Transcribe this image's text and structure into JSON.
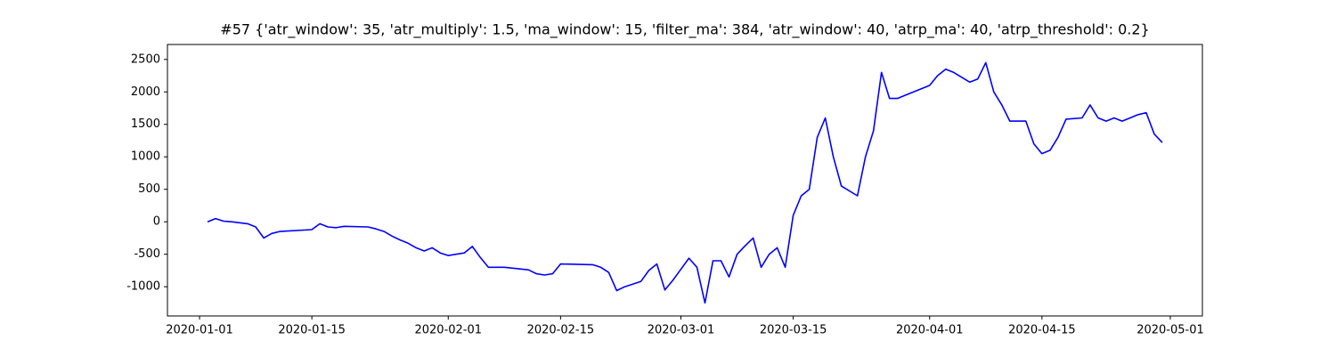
{
  "chart_data": {
    "type": "line",
    "title": "#57 {'atr_window': 35, 'atr_multiply': 1.5, 'ma_window': 15, 'filter_ma': 384, 'atr_window': 40, 'atrp_ma': 40, 'atrp_threshold': 0.2}",
    "x": [
      "2020-01-02",
      "2020-01-03",
      "2020-01-04",
      "2020-01-05",
      "2020-01-07",
      "2020-01-08",
      "2020-01-09",
      "2020-01-10",
      "2020-01-11",
      "2020-01-15",
      "2020-01-16",
      "2020-01-17",
      "2020-01-18",
      "2020-01-19",
      "2020-01-22",
      "2020-01-23",
      "2020-01-24",
      "2020-01-25",
      "2020-01-26",
      "2020-01-27",
      "2020-01-28",
      "2020-01-29",
      "2020-01-30",
      "2020-01-31",
      "2020-02-01",
      "2020-02-03",
      "2020-02-04",
      "2020-02-05",
      "2020-02-06",
      "2020-02-08",
      "2020-02-11",
      "2020-02-12",
      "2020-02-13",
      "2020-02-14",
      "2020-02-15",
      "2020-02-19",
      "2020-02-20",
      "2020-02-21",
      "2020-02-22",
      "2020-02-23",
      "2020-02-25",
      "2020-02-26",
      "2020-02-27",
      "2020-02-28",
      "2020-02-29",
      "2020-03-02",
      "2020-03-03",
      "2020-03-04",
      "2020-03-05",
      "2020-03-06",
      "2020-03-07",
      "2020-03-08",
      "2020-03-09",
      "2020-03-10",
      "2020-03-11",
      "2020-03-12",
      "2020-03-13",
      "2020-03-14",
      "2020-03-15",
      "2020-03-16",
      "2020-03-17",
      "2020-03-18",
      "2020-03-19",
      "2020-03-20",
      "2020-03-21",
      "2020-03-23",
      "2020-03-24",
      "2020-03-25",
      "2020-03-26",
      "2020-03-27",
      "2020-03-28",
      "2020-03-29",
      "2020-03-30",
      "2020-03-31",
      "2020-04-01",
      "2020-04-02",
      "2020-04-03",
      "2020-04-04",
      "2020-04-06",
      "2020-04-07",
      "2020-04-08",
      "2020-04-09",
      "2020-04-10",
      "2020-04-11",
      "2020-04-13",
      "2020-04-14",
      "2020-04-15",
      "2020-04-16",
      "2020-04-17",
      "2020-04-18",
      "2020-04-20",
      "2020-04-21",
      "2020-04-22",
      "2020-04-23",
      "2020-04-24",
      "2020-04-25",
      "2020-04-27",
      "2020-04-28",
      "2020-04-29",
      "2020-04-30"
    ],
    "series": [
      {
        "color": "#0000ff",
        "values": [
          0,
          50,
          10,
          0,
          -30,
          -80,
          -250,
          -180,
          -150,
          -120,
          -30,
          -80,
          -90,
          -70,
          -80,
          -110,
          -150,
          -220,
          -280,
          -330,
          -400,
          -450,
          -400,
          -480,
          -520,
          -480,
          -380,
          -550,
          -700,
          -700,
          -740,
          -800,
          -820,
          -800,
          -650,
          -660,
          -700,
          -780,
          -1060,
          -1000,
          -920,
          -750,
          -650,
          -1050,
          -900,
          -560,
          -700,
          -1250,
          -600,
          -600,
          -850,
          -500,
          -370,
          -250,
          -700,
          -500,
          -400,
          -700,
          100,
          400,
          500,
          1300,
          1600,
          1000,
          550,
          400,
          1000,
          1400,
          2300,
          1900,
          1900,
          1950,
          2000,
          2050,
          2100,
          2250,
          2350,
          2300,
          2150,
          2200,
          2450,
          2000,
          1800,
          1550,
          1550,
          1200,
          1050,
          1100,
          1300,
          1580,
          1600,
          1800,
          1600,
          1550,
          1600,
          1550,
          1650,
          1680,
          1350,
          1220
        ]
      }
    ],
    "xlim": [
      "2019-12-28",
      "2020-05-05"
    ],
    "xticks": [
      "2020-01-01",
      "2020-01-15",
      "2020-02-01",
      "2020-02-15",
      "2020-03-01",
      "2020-03-15",
      "2020-04-01",
      "2020-04-15",
      "2020-05-01"
    ],
    "ylim": [
      -1450,
      2730
    ],
    "yticks": [
      -1000,
      -500,
      0,
      500,
      1000,
      1500,
      2000,
      2500
    ]
  }
}
